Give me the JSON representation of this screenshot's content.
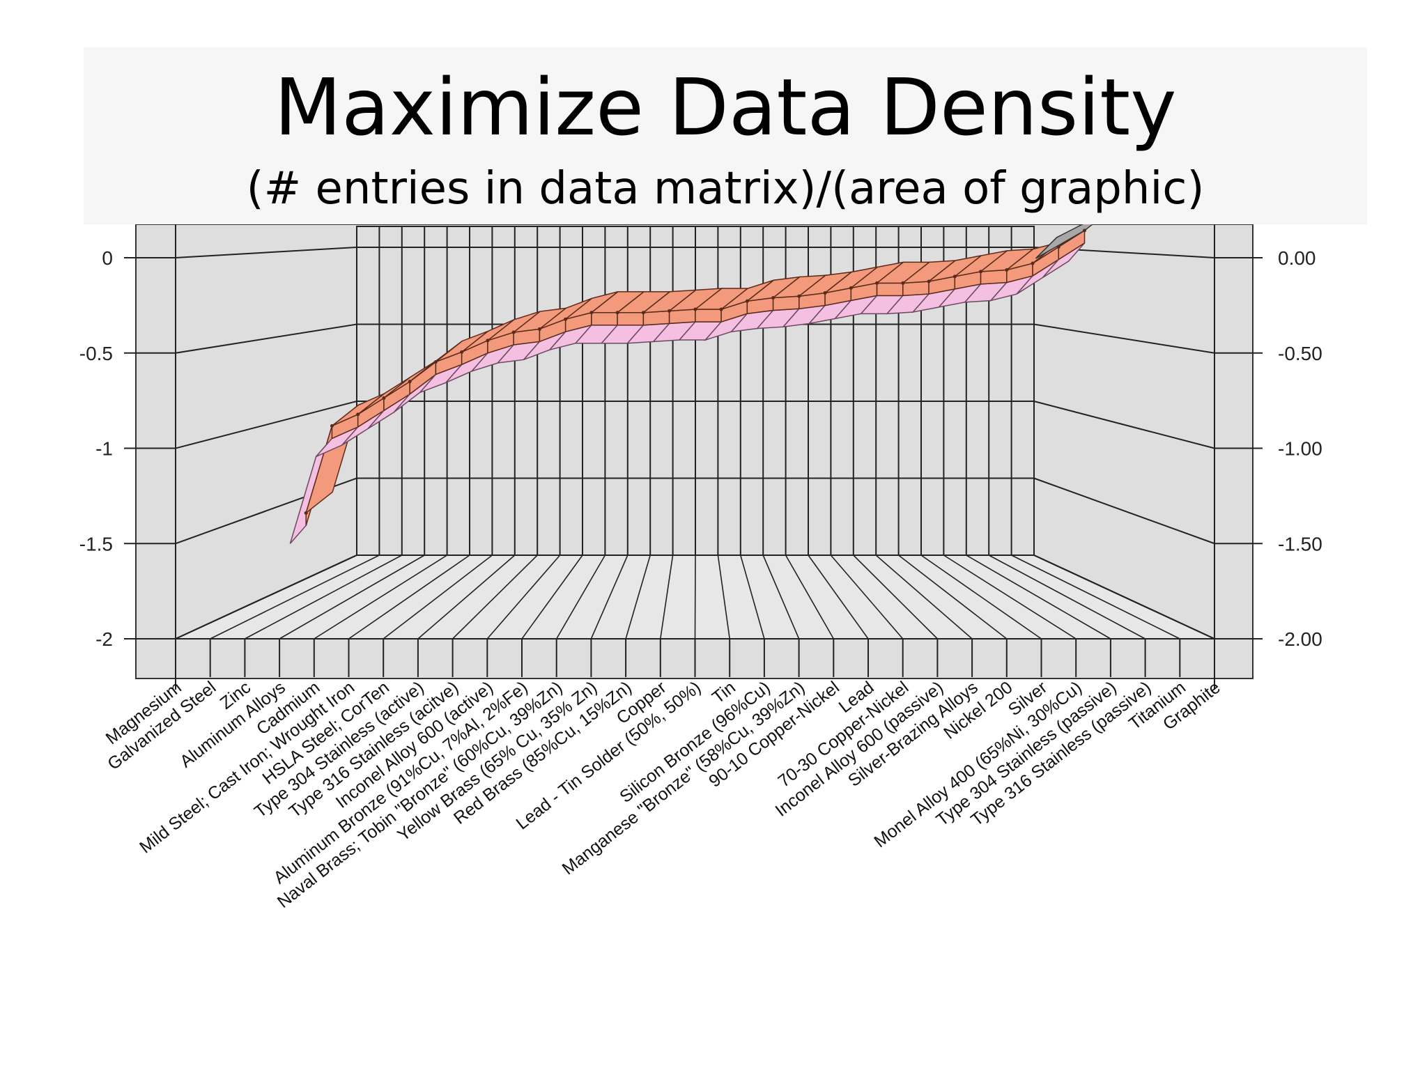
{
  "slide": {
    "title": "Maximize Data Density",
    "subtitle": "(# entries in data matrix)/(area of graphic)"
  },
  "chart_data": {
    "type": "line",
    "title": "",
    "xlabel": "",
    "ylabel": "",
    "style": "3d ribbon",
    "ylim": [
      -2,
      0
    ],
    "grid": true,
    "legend": "none",
    "y_ticks_left": [
      "0",
      "-0.5",
      "-1",
      "-1.5",
      "-2"
    ],
    "y_ticks_right": [
      "0.00",
      "-0.50",
      "-1.00",
      "-1.50",
      "-2.00"
    ],
    "categories": [
      "Magnesium",
      "Galvanized Steel",
      "Zinc",
      "Aluminum Alloys",
      "Cadmium",
      "Mild Steel;  Cast Iron;  Wrought Iron",
      "HSLA Steel;  CorTen",
      "Type 304 Stainless (active)",
      "Type 316 Stainless (acitve)",
      "Inconel Alloy 600 (active)",
      "Aluminum Bronze  (91%Cu, 7%Al, 2%Fe)",
      "Naval Brass;  Tobin \"Bronze\"  (60%Cu, 39%Zn)",
      "Yellow Brass  (65% Cu, 35% Zn)",
      "Red Brass  (85%Cu, 15%Zn)",
      "Copper",
      "Lead - Tin Solder  (50%, 50%)",
      "Tin",
      "Silicon Bronze  (96%Cu)",
      "Manganese \"Bronze\"  (58%Cu, 39%Zn)",
      "90-10 Copper-Nickel",
      "Lead",
      "70-30 Copper-Nickel",
      "Inconel Alloy 600 (passive)",
      "Silver-Brazing Alloys",
      "Nickel 200",
      "Silver",
      "Monel Alloy 400 (65%Ni, 30%Cu)",
      "Type 304 Stainless (passive)",
      "Type 316 Stainless (passive)",
      "Titanium",
      "Graphite"
    ],
    "series": [
      {
        "values": [
          -1.6,
          -1.07,
          -1.0,
          -0.9,
          -0.8,
          -0.68,
          -0.62,
          -0.55,
          -0.5,
          -0.48,
          -0.42,
          -0.38,
          -0.38,
          -0.38,
          -0.37,
          -0.36,
          -0.36,
          -0.31,
          -0.29,
          -0.28,
          -0.26,
          -0.23,
          -0.2,
          -0.2,
          -0.19,
          -0.16,
          -0.13,
          -0.12,
          -0.08,
          0.02,
          0.12
        ]
      }
    ],
    "colors": {
      "ribbon_top": "#f39a7c",
      "ribbon_side": "#f4bfe0",
      "ribbon_end": "#a8a8a8",
      "wall": "#dedede",
      "floor": "#e7e7e7"
    }
  }
}
